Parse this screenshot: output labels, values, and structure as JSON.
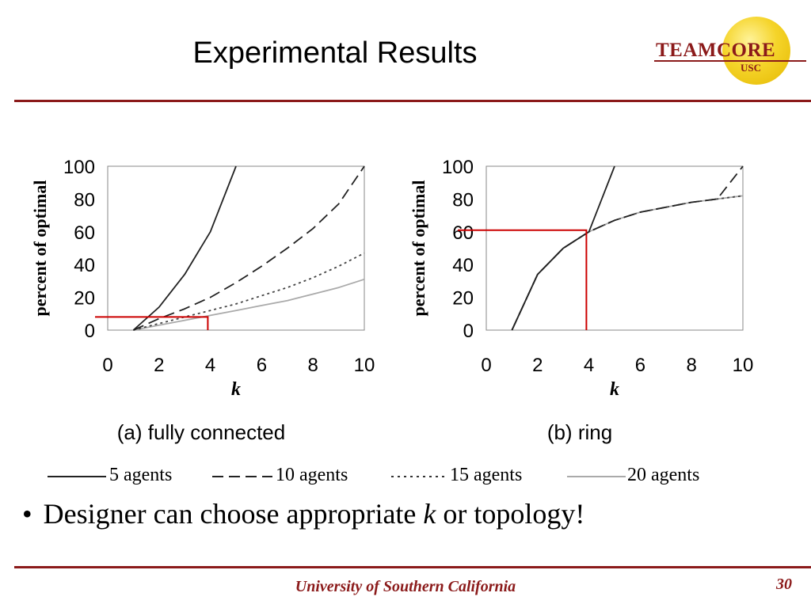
{
  "slide": {
    "title": "Experimental Results",
    "bullet": {
      "before": "Designer can choose appropriate ",
      "italic": "k",
      "after": " or topology!"
    },
    "footer_university": "University of Southern California",
    "page_number": "30"
  },
  "logo": {
    "wordmark": "TEAMCORE",
    "subtext": "USC",
    "color": "#8b1a1a",
    "sun_color": "#f5d42a"
  },
  "colors": {
    "accent": "#8b1a1a",
    "highlight": "#cc0000"
  },
  "legend": [
    {
      "label": "5 agents",
      "style": "solid"
    },
    {
      "label": "10 agents",
      "style": "dashed"
    },
    {
      "label": "15 agents",
      "style": "dotted"
    },
    {
      "label": "20 agents",
      "style": "gray-solid"
    }
  ],
  "chart_data": [
    {
      "type": "line",
      "caption": "(a) fully connected",
      "xlabel": "k",
      "ylabel": "percent of optimal",
      "xlim": [
        0,
        10
      ],
      "ylim": [
        0,
        100
      ],
      "xticks": [
        0,
        2,
        4,
        6,
        8,
        10
      ],
      "yticks": [
        0,
        20,
        40,
        60,
        80,
        100
      ],
      "grid": false,
      "series": [
        {
          "name": "5 agents",
          "x": [
            1,
            2,
            3,
            4,
            5
          ],
          "values": [
            0,
            14,
            34,
            60,
            100
          ]
        },
        {
          "name": "10 agents",
          "x": [
            1,
            2,
            3,
            4,
            5,
            6,
            7,
            8,
            9,
            10
          ],
          "values": [
            0,
            7,
            13,
            20,
            29,
            39,
            50,
            62,
            77,
            100
          ]
        },
        {
          "name": "15 agents",
          "x": [
            1,
            2,
            3,
            4,
            5,
            6,
            7,
            8,
            9,
            10
          ],
          "values": [
            0,
            4,
            8,
            12,
            16,
            21,
            26,
            32,
            39,
            47
          ]
        },
        {
          "name": "20 agents",
          "x": [
            1,
            2,
            3,
            4,
            5,
            6,
            7,
            8,
            9,
            10
          ],
          "values": [
            0,
            3,
            6,
            9,
            12,
            15,
            18,
            22,
            26,
            31
          ]
        }
      ],
      "annotation": {
        "x": 3.9,
        "y": 8,
        "color": "#cc0000"
      }
    },
    {
      "type": "line",
      "caption": "(b) ring",
      "xlabel": "k",
      "ylabel": "percent of optimal",
      "xlim": [
        0,
        10
      ],
      "ylim": [
        0,
        100
      ],
      "xticks": [
        0,
        2,
        4,
        6,
        8,
        10
      ],
      "yticks": [
        0,
        20,
        40,
        60,
        80,
        100
      ],
      "grid": false,
      "series": [
        {
          "name": "5 agents",
          "x": [
            1,
            2,
            3,
            4,
            5
          ],
          "values": [
            0,
            34,
            50,
            60,
            100
          ]
        },
        {
          "name": "10 agents",
          "x": [
            1,
            2,
            3,
            4,
            5,
            6,
            7,
            8,
            9,
            10
          ],
          "values": [
            0,
            34,
            50,
            60,
            67,
            72,
            75,
            78,
            80,
            100
          ]
        },
        {
          "name": "15 agents",
          "x": [
            1,
            2,
            3,
            4,
            5,
            6,
            7,
            8,
            9,
            10
          ],
          "values": [
            0,
            34,
            50,
            60,
            67,
            72,
            75,
            78,
            80,
            82
          ]
        },
        {
          "name": "20 agents",
          "x": [
            1,
            2,
            3,
            4,
            5,
            6,
            7,
            8,
            9,
            10
          ],
          "values": [
            0,
            34,
            50,
            60,
            67,
            72,
            75,
            78,
            80,
            82
          ]
        }
      ],
      "annotation": {
        "x": 3.9,
        "y": 61,
        "color": "#cc0000"
      }
    }
  ]
}
